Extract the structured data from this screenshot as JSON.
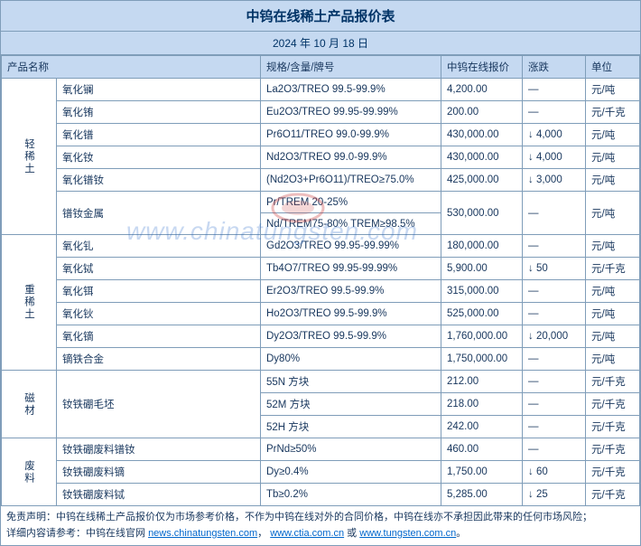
{
  "title": "中钨在线稀土产品报价表",
  "date": "2024 年 10 月 18 日",
  "headers": {
    "name": "产品名称",
    "spec": "规格/含量/牌号",
    "price": "中钨在线报价",
    "change": "涨跌",
    "unit": "单位"
  },
  "categories": [
    {
      "label": "轻稀土",
      "rows": [
        {
          "name": "氧化镧",
          "spec": "La2O3/TREO 99.5-99.9%",
          "price": "4,200.00",
          "change": "—",
          "unit": "元/吨",
          "double": false
        },
        {
          "name": "氧化铕",
          "spec": "Eu2O3/TREO 99.95-99.99%",
          "price": "200.00",
          "change": "—",
          "unit": "元/千克",
          "double": false
        },
        {
          "name": "氧化镨",
          "spec": "Pr6O11/TREO 99.0-99.9%",
          "price": "430,000.00",
          "change": "↓ 4,000",
          "unit": "元/吨",
          "double": false
        },
        {
          "name": "氧化钕",
          "spec": "Nd2O3/TREO 99.0-99.9%",
          "price": "430,000.00",
          "change": "↓ 4,000",
          "unit": "元/吨",
          "double": false
        },
        {
          "name": "氧化镨钕",
          "spec": "(Nd2O3+Pr6O11)/TREO≥75.0%",
          "price": "425,000.00",
          "change": "↓ 3,000",
          "unit": "元/吨",
          "double": false
        },
        {
          "name": "镨钕金属",
          "spec": "Pr/TREM 20-25%\nNd/TREM75-80% TREM≥98.5%",
          "price": "530,000.00",
          "change": "—",
          "unit": "元/吨",
          "double": true
        }
      ]
    },
    {
      "label": "重稀土",
      "rows": [
        {
          "name": "氧化钆",
          "spec": "Gd2O3/TREO 99.95-99.99%",
          "price": "180,000.00",
          "change": "—",
          "unit": "元/吨",
          "double": false
        },
        {
          "name": "氧化铽",
          "spec": "Tb4O7/TREO 99.95-99.99%",
          "price": "5,900.00",
          "change": "↓ 50",
          "unit": "元/千克",
          "double": false
        },
        {
          "name": "氧化铒",
          "spec": "Er2O3/TREO 99.5-99.9%",
          "price": "315,000.00",
          "change": "—",
          "unit": "元/吨",
          "double": false
        },
        {
          "name": "氧化钬",
          "spec": "Ho2O3/TREO 99.5-99.9%",
          "price": "525,000.00",
          "change": "—",
          "unit": "元/吨",
          "double": false
        },
        {
          "name": "氧化镝",
          "spec": "Dy2O3/TREO 99.5-99.9%",
          "price": "1,760,000.00",
          "change": "↓ 20,000",
          "unit": "元/吨",
          "double": false
        },
        {
          "name": "镝铁合金",
          "spec": "Dy80%",
          "price": "1,750,000.00",
          "change": "—",
          "unit": "元/吨",
          "double": false
        }
      ]
    },
    {
      "label": "磁材",
      "rows": [
        {
          "name": "钕铁硼毛坯",
          "spec": "55N 方块",
          "price": "212.00",
          "change": "—",
          "unit": "元/千克",
          "double": false,
          "namerow": 3
        },
        {
          "name": "",
          "spec": "52M 方块",
          "price": "218.00",
          "change": "—",
          "unit": "元/千克",
          "double": false
        },
        {
          "name": "",
          "spec": "52H 方块",
          "price": "242.00",
          "change": "—",
          "unit": "元/千克",
          "double": false
        }
      ]
    },
    {
      "label": "废料",
      "rows": [
        {
          "name": "钕铁硼废料镨钕",
          "spec": "PrNd≥50%",
          "price": "460.00",
          "change": "—",
          "unit": "元/千克",
          "double": false
        },
        {
          "name": "钕铁硼废料镝",
          "spec": "Dy≥0.4%",
          "price": "1,750.00",
          "change": "↓ 60",
          "unit": "元/千克",
          "double": false
        },
        {
          "name": "钕铁硼废料铽",
          "spec": "Tb≥0.2%",
          "price": "5,285.00",
          "change": "↓ 25",
          "unit": "元/千克",
          "double": false
        }
      ]
    }
  ],
  "footer": {
    "line1_pre": "免责声明：中钨在线稀土产品报价仅为市场参考价格，不作为中钨在线对外的合同价格，中钨在线亦不承担因此带来的任何市场风险；",
    "line2_pre": "详细内容请参考：中钨在线官网 ",
    "link1": "news.chinatungsten.com",
    "sep1": "，",
    "link2": "www.ctia.com.cn",
    "sep2": " 或 ",
    "link3": "www.tungsten.com.cn",
    "tail": "。"
  },
  "watermark": "www.chinatungsten.com"
}
